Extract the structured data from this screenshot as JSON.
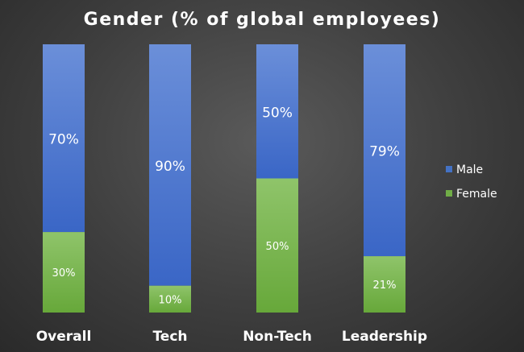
{
  "chart_data": {
    "type": "bar",
    "stacked": true,
    "orientation": "vertical",
    "normalized": true,
    "title": "Gender (% of global employees)",
    "categories": [
      "Overall",
      "Tech",
      "Non-Tech",
      "Leadership"
    ],
    "series": [
      {
        "name": "Female",
        "values": [
          30,
          10,
          50,
          21
        ],
        "labels": [
          "30%",
          "10%",
          "50%",
          "21%"
        ],
        "color": "#70ad47"
      },
      {
        "name": "Male",
        "values": [
          70,
          90,
          50,
          79
        ],
        "labels": [
          "70%",
          "90%",
          "50%",
          "79%"
        ],
        "color": "#4472c4"
      }
    ],
    "ylim": [
      0,
      100
    ],
    "grid": false,
    "legend": {
      "position": "right",
      "entries": [
        "Male",
        "Female"
      ]
    }
  }
}
